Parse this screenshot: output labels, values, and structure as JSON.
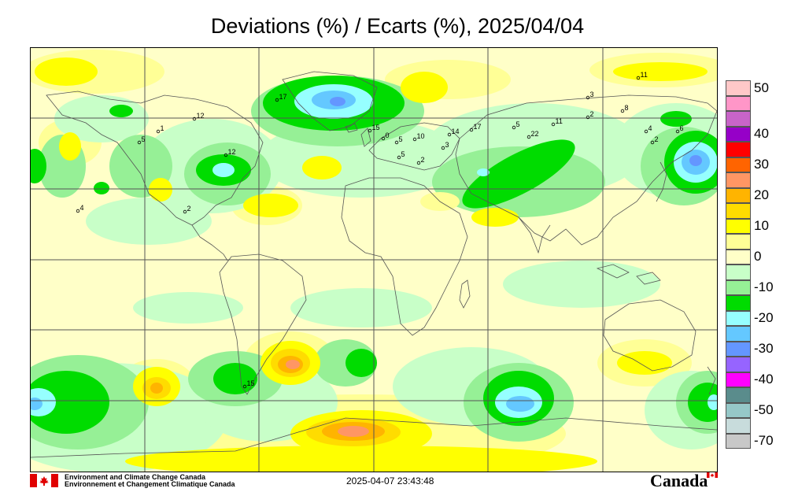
{
  "title": "Deviations (%) / Ecarts (%), 2025/04/04",
  "legend": {
    "items": [
      {
        "label": "50",
        "color": "#ffc8c8"
      },
      {
        "label": "",
        "color": "#ff96c8"
      },
      {
        "label": "",
        "color": "#c864c8"
      },
      {
        "label": "40",
        "color": "#9600c8"
      },
      {
        "label": "",
        "color": "#ff0000"
      },
      {
        "label": "30",
        "color": "#ff6400"
      },
      {
        "label": "",
        "color": "#ff9664"
      },
      {
        "label": "20",
        "color": "#ffb400"
      },
      {
        "label": "",
        "color": "#ffdc00"
      },
      {
        "label": "10",
        "color": "#ffff00"
      },
      {
        "label": "",
        "color": "#ffff96"
      },
      {
        "label": "0",
        "color": "#ffffc8"
      },
      {
        "label": "",
        "color": "#c8ffc8"
      },
      {
        "label": "-10",
        "color": "#96f096"
      },
      {
        "label": "",
        "color": "#00dc00"
      },
      {
        "label": "-20",
        "color": "#96ffff"
      },
      {
        "label": "",
        "color": "#64c8ff"
      },
      {
        "label": "-30",
        "color": "#6496ff"
      },
      {
        "label": "",
        "color": "#9664ff"
      },
      {
        "label": "-40",
        "color": "#ff00ff"
      },
      {
        "label": "",
        "color": "#5a8c8c"
      },
      {
        "label": "-50",
        "color": "#96c8c8"
      },
      {
        "label": "",
        "color": "#c8dcdc"
      },
      {
        "label": "-70",
        "color": "#c8c8c8"
      }
    ]
  },
  "stations": [
    {
      "label": "11"
    },
    {
      "label": "17"
    },
    {
      "label": "12"
    },
    {
      "label": "1"
    },
    {
      "label": "5"
    },
    {
      "label": "12"
    },
    {
      "label": "4"
    },
    {
      "label": "2"
    },
    {
      "label": "3"
    },
    {
      "label": "8"
    },
    {
      "label": "2"
    },
    {
      "label": "22"
    },
    {
      "label": "11"
    },
    {
      "label": "5"
    },
    {
      "label": "17"
    },
    {
      "label": "14"
    },
    {
      "label": "15"
    },
    {
      "label": "2"
    },
    {
      "label": "4"
    },
    {
      "label": "6"
    },
    {
      "label": "2"
    },
    {
      "label": "5"
    },
    {
      "label": "10"
    },
    {
      "label": "3"
    },
    {
      "label": "0"
    },
    {
      "label": "15"
    },
    {
      "label": "5"
    }
  ],
  "footer": {
    "org_en": "Environment and Climate Change Canada",
    "org_fr": "Environnement et Changement Climatique Canada",
    "timestamp": "2025-04-07 23:43:48",
    "wordmark": "Canada"
  }
}
